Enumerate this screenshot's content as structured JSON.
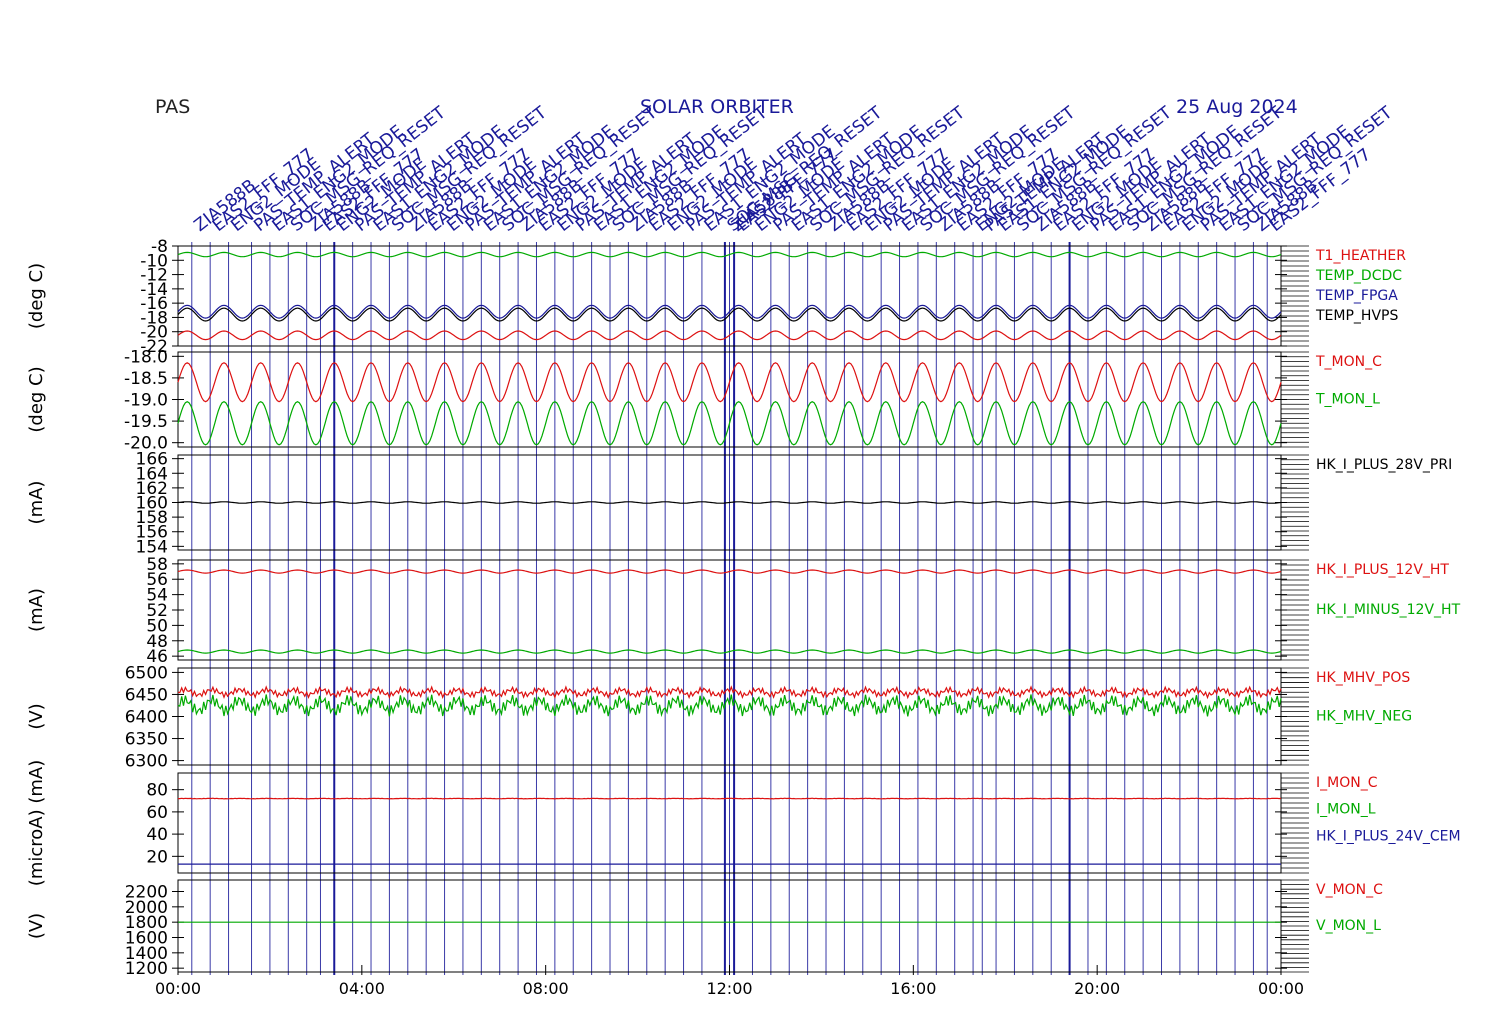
{
  "header": {
    "instrument": "PAS",
    "mission": "SOLAR ORBITER",
    "date": "25 Aug 2024"
  },
  "event_annotations": {
    "labels": [
      "ZIA588B",
      "EAS2_FFF_777",
      "ENG2_MODE",
      "PAS_TEMP_ALERT",
      "EAS1_ENG2_MODE",
      "SOC_MSG_REQ_RESET"
    ],
    "color": "#1a1a99"
  },
  "colors": {
    "red": "#dd1111",
    "green": "#00aa00",
    "blue": "#1a1a99",
    "black": "#000000",
    "frame": "#000000"
  },
  "chart_data": {
    "type": "line",
    "x_axis": {
      "range": [
        "00:00",
        "24:00"
      ],
      "tick_labels": [
        "00:00",
        "04:00",
        "08:00",
        "12:00",
        "16:00",
        "20:00",
        "00:00"
      ]
    },
    "panels": [
      {
        "ylabel": "(deg C)",
        "ylim": [
          -22,
          -8
        ],
        "ticks": [
          "-8",
          "-10",
          "-12",
          "-14",
          "-16",
          "-18",
          "-20",
          "-22"
        ],
        "series": [
          {
            "name": "T1_HEATHER",
            "color": "red",
            "mean": -20.5,
            "amp": 0.6,
            "periods": 30
          },
          {
            "name": "TEMP_DCDC",
            "color": "green",
            "mean": -9.2,
            "amp": 0.3,
            "periods": 30
          },
          {
            "name": "TEMP_FPGA",
            "color": "blue",
            "mean": -17.2,
            "amp": 0.9,
            "periods": 30
          },
          {
            "name": "TEMP_HVPS",
            "color": "black",
            "mean": -17.6,
            "amp": 0.9,
            "periods": 30
          }
        ]
      },
      {
        "ylabel": "(deg C)",
        "ylim": [
          -20.1,
          -17.9
        ],
        "ticks": [
          "-18.0",
          "-18.5",
          "-19.0",
          "-19.5",
          "-20.0"
        ],
        "series": [
          {
            "name": "T_MON_C",
            "color": "red",
            "mean": -18.6,
            "amp": 0.45,
            "periods": 30
          },
          {
            "name": "T_MON_L",
            "color": "green",
            "mean": -19.55,
            "amp": 0.5,
            "periods": 30
          }
        ]
      },
      {
        "ylabel": "(mA)",
        "ylim": [
          153.5,
          166.5
        ],
        "ticks": [
          "166",
          "164",
          "162",
          "160",
          "158",
          "156",
          "154"
        ],
        "series": [
          {
            "name": "HK_I_PLUS_28V_PRI",
            "color": "black",
            "mean": 160.0,
            "amp": 0.1,
            "periods": 30
          }
        ]
      },
      {
        "ylabel": "(mA)",
        "ylim": [
          45.5,
          58.5
        ],
        "ticks": [
          "58",
          "56",
          "54",
          "52",
          "50",
          "48",
          "46"
        ],
        "series": [
          {
            "name": "HK_I_PLUS_12V_HT",
            "color": "red",
            "mean": 57.0,
            "amp": 0.2,
            "periods": 30
          },
          {
            "name": "HK_I_MINUS_12V_HT",
            "color": "green",
            "mean": 46.6,
            "amp": 0.2,
            "periods": 30
          }
        ]
      },
      {
        "ylabel": "(V)",
        "ylim": [
          6290,
          6510
        ],
        "ticks": [
          "6500",
          "6450",
          "6400",
          "6350",
          "6300"
        ],
        "series": [
          {
            "name": "HK_MHV_POS",
            "color": "red",
            "mean": 6455,
            "amp": 12,
            "periods": 0
          },
          {
            "name": "HK_MHV_NEG",
            "color": "green",
            "mean": 6425,
            "amp": 25,
            "periods": 0
          }
        ]
      },
      {
        "ylabel": "(microA) (mA)",
        "ylim": [
          5,
          95
        ],
        "ticks": [
          "80",
          "60",
          "40",
          "20"
        ],
        "series": [
          {
            "name": "I_MON_C",
            "color": "red",
            "mean": 72,
            "amp": 0.3,
            "periods": 0
          },
          {
            "name": "I_MON_L",
            "color": "green",
            "mean": null,
            "amp": 0,
            "periods": 0
          },
          {
            "name": "HK_I_PLUS_24V_CEM",
            "color": "blue",
            "mean": 13,
            "amp": 0,
            "periods": 0
          }
        ]
      },
      {
        "ylabel": "(V)",
        "ylim": [
          1150,
          2350
        ],
        "ticks": [
          "2200",
          "2000",
          "1800",
          "1600",
          "1400",
          "1200"
        ],
        "series": [
          {
            "name": "V_MON_C",
            "color": "red",
            "mean": null,
            "amp": 0,
            "periods": 0
          },
          {
            "name": "V_MON_L",
            "color": "green",
            "mean": 1800,
            "amp": 0,
            "periods": 0
          }
        ]
      }
    ],
    "event_times_h": [
      0.3,
      0.7,
      1.1,
      1.6,
      2.0,
      2.4,
      2.8,
      3.1,
      3.4,
      3.8,
      4.2,
      4.6,
      5.0,
      5.4,
      5.8,
      6.2,
      6.6,
      7.0,
      7.4,
      7.8,
      8.2,
      8.6,
      9.0,
      9.4,
      9.8,
      10.2,
      10.6,
      11.0,
      11.4,
      11.9,
      12.0,
      12.1,
      12.5,
      12.9,
      13.3,
      13.7,
      14.1,
      14.5,
      14.9,
      15.3,
      15.7,
      16.1,
      16.5,
      16.9,
      17.3,
      17.5,
      17.8,
      18.2,
      18.6,
      19.0,
      19.4,
      19.8,
      20.2,
      20.6,
      21.0,
      21.4,
      21.8,
      22.2,
      22.6,
      23.0,
      23.4,
      23.7
    ],
    "bold_event_times_h": [
      3.4,
      11.9,
      12.1,
      19.4
    ]
  }
}
